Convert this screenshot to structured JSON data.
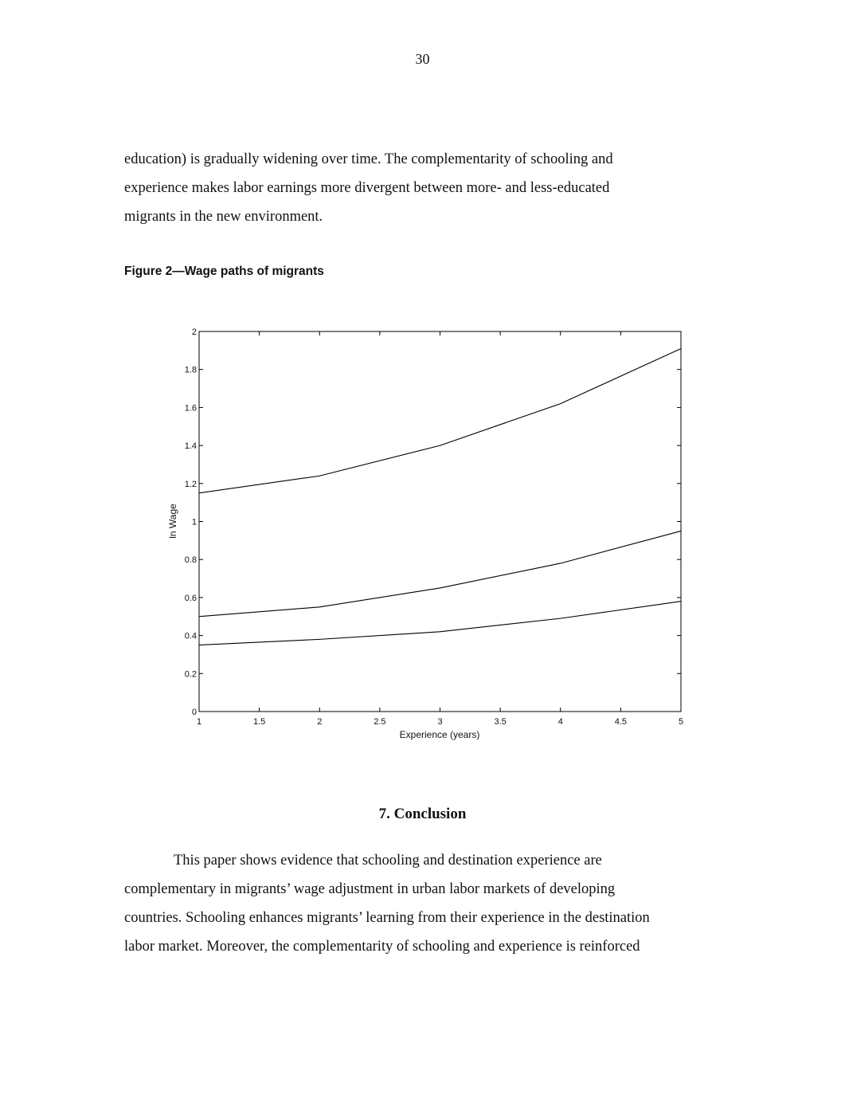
{
  "page": {
    "number": "30"
  },
  "paragraph_1": {
    "lines": [
      "education) is gradually widening over time.  The complementarity of schooling and",
      "experience makes labor earnings more divergent between more- and less-educated",
      "migrants in the new environment."
    ]
  },
  "figure": {
    "caption": "Figure 2—Wage paths of migrants"
  },
  "chart_data": {
    "type": "line",
    "title": "",
    "xlabel": "Experience (years)",
    "ylabel": "ln Wage",
    "xlim": [
      1,
      5
    ],
    "ylim": [
      0,
      2
    ],
    "xticks": [
      1,
      1.5,
      2,
      2.5,
      3,
      3.5,
      4,
      4.5,
      5
    ],
    "xtick_labels": [
      "1",
      "1.5",
      "2",
      "2.5",
      "3",
      "3.5",
      "4",
      "4.5",
      "5"
    ],
    "yticks": [
      0,
      0.2,
      0.4,
      0.6,
      0.8,
      1,
      1.2,
      1.4,
      1.6,
      1.8,
      2
    ],
    "ytick_labels": [
      "0",
      "0.2",
      "0.4",
      "0.6",
      "0.8",
      "1",
      "1.2",
      "1.4",
      "1.6",
      "1.8",
      "2"
    ],
    "grid": false,
    "legend": "none",
    "x": [
      1,
      2,
      3,
      4,
      5
    ],
    "series": [
      {
        "values": [
          1.15,
          1.24,
          1.4,
          1.62,
          1.91
        ]
      },
      {
        "values": [
          0.5,
          0.55,
          0.65,
          0.78,
          0.95
        ]
      },
      {
        "values": [
          0.35,
          0.38,
          0.42,
          0.49,
          0.58
        ]
      }
    ]
  },
  "section": {
    "heading": "7. Conclusion"
  },
  "paragraph_2": {
    "lines": [
      "This paper shows evidence that schooling and destination experience are",
      "complementary in migrants’ wage adjustment in urban labor markets of developing",
      "countries.  Schooling enhances migrants’ learning from their experience in the destination",
      "labor market.  Moreover, the complementarity of schooling and experience is reinforced"
    ]
  }
}
